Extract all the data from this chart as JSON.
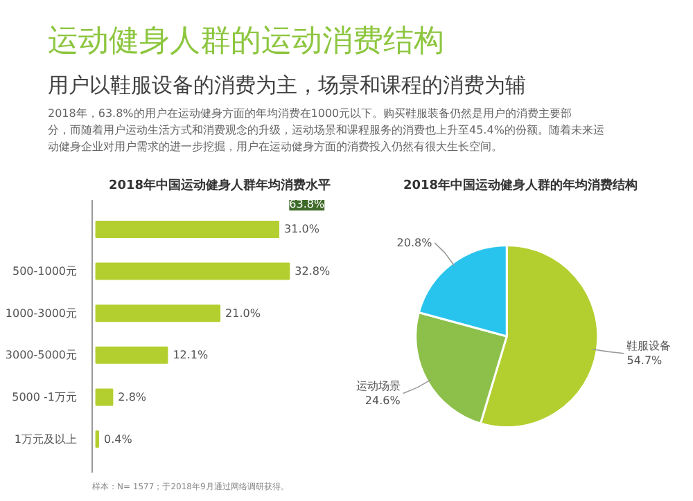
{
  "chart_data": [
    {
      "type": "other",
      "title": "运动健身人群的运动消费结构",
      "subtitle": "用户以鞋服设备的消费为主，场景和课程的消费为辅",
      "annotations": [
        "2018年，63.8%的用户在运动健身方面的年均消费在1000元以下。购买鞋服装备仍然是用户的消费主要部分，而随着用户运动生活方式和消费观念的升级，运动场景和课程服务的消费也上升至45.4%的份额。随着未来运动健身企业对用户需求的进一步挖掘，用户在运动健身方面的消费投入仍然有很大生长空间。"
      ]
    },
    {
      "type": "bar",
      "orientation": "horizontal",
      "title": "2018年中国运动健身人群年均消费水平",
      "categories": [
        null,
        "500-1000元",
        "1000-3000元",
        "3000-5000元",
        "5000 -1万元",
        "1万元及以上"
      ],
      "values": [
        31.0,
        32.8,
        21.0,
        12.1,
        2.8,
        0.4
      ],
      "value_labels": [
        "31.0%",
        "32.8%",
        "21.0%",
        "12.1%",
        "2.8%",
        "0.4%"
      ],
      "color": "#b3cf2f",
      "annotations": [
        "63.8%",
        "样本：N= 1577；于2018年9月通过网络调研获得。"
      ]
    },
    {
      "type": "pie",
      "title": "2018年中国运动健身人群的年均消费结构",
      "categories": [
        "鞋服设备",
        "运动场景",
        null
      ],
      "values": [
        54.7,
        24.6,
        20.8
      ],
      "value_labels": [
        "54.7%",
        "24.6%",
        "20.8%"
      ],
      "colors": [
        "#b3cf2f",
        "#8cc04a",
        "#29c4ee"
      ]
    }
  ]
}
